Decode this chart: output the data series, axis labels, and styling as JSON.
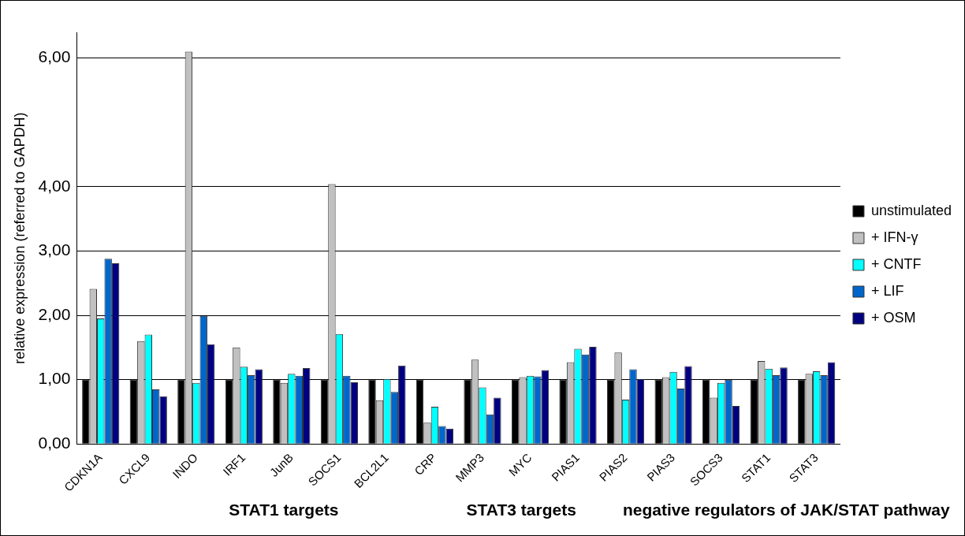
{
  "chart_data": {
    "type": "bar",
    "ylabel": "relative expression (referred to GAPDH)",
    "categories": [
      "CDKN1A",
      "CXCL9",
      "INDO",
      "IRF1",
      "JunB",
      "SOCS1",
      "BCL2L1",
      "CRP",
      "MMP3",
      "MYC",
      "PIAS1",
      "PIAS2",
      "PIAS3",
      "SOCS3",
      "STAT1",
      "STAT3"
    ],
    "series": [
      {
        "name": "unstimulated",
        "color": "#000000",
        "values": [
          1,
          1,
          1,
          1,
          1,
          1,
          1,
          1,
          1,
          1,
          1,
          1,
          1,
          1,
          1,
          1
        ]
      },
      {
        "name": "+ IFN-γ",
        "color": "#c0c0c0",
        "values": [
          2.41,
          1.6,
          6.1,
          1.5,
          0.95,
          4.04,
          0.68,
          0.33,
          1.31,
          1.04,
          1.27,
          1.42,
          1.04,
          0.72,
          1.29,
          1.09
        ]
      },
      {
        "name": "+ CNTF",
        "color": "#00ffff",
        "values": [
          1.95,
          1.7,
          0.95,
          1.2,
          1.09,
          1.71,
          1.01,
          0.58,
          0.88,
          1.06,
          1.48,
          0.69,
          1.12,
          0.95,
          1.17,
          1.13
        ]
      },
      {
        "name": "+ LIF",
        "color": "#0066cc",
        "values": [
          2.88,
          0.85,
          1.99,
          1.07,
          1.06,
          1.06,
          0.81,
          0.28,
          0.46,
          1.05,
          1.39,
          1.16,
          0.86,
          1.0,
          1.07,
          1.07
        ]
      },
      {
        "name": "+ OSM",
        "color": "#000080",
        "values": [
          2.81,
          0.74,
          1.55,
          1.16,
          1.18,
          0.96,
          1.22,
          0.24,
          0.72,
          1.15,
          1.51,
          1.01,
          1.21,
          0.59,
          1.19,
          1.27
        ]
      }
    ],
    "ylim": [
      0,
      6.4
    ],
    "yticks": [
      {
        "value": 0,
        "label": "0,00"
      },
      {
        "value": 1,
        "label": "1,00"
      },
      {
        "value": 2,
        "label": "2,00"
      },
      {
        "value": 3,
        "label": "3,00"
      },
      {
        "value": 4,
        "label": "4,00"
      },
      {
        "value": 6,
        "label": "6,00"
      }
    ],
    "grid": "y",
    "legend": "right",
    "annotations": [
      "STAT1 targets",
      "STAT3 targets",
      "negative regulators of JAK/STAT pathway"
    ]
  }
}
